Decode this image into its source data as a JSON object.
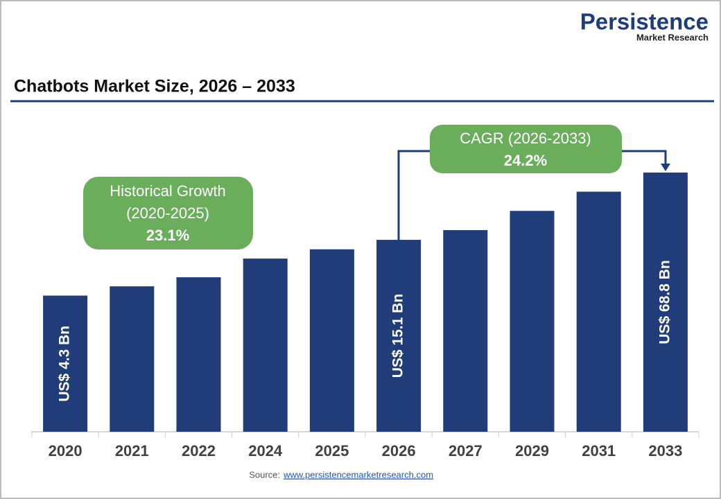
{
  "brand": {
    "name": "Persistence",
    "tagline": "Market Research"
  },
  "source": {
    "label": "Source:",
    "url": "www.persistencemarketresearch.com"
  },
  "chart_data": {
    "type": "bar",
    "title": "Chatbots Market Size, 2026 – 2033",
    "categories": [
      "2020",
      "2021",
      "2022",
      "2024",
      "2025",
      "2026",
      "2027",
      "2029",
      "2031",
      "2033"
    ],
    "values": [
      4.3,
      5.3,
      6.5,
      9.9,
      12.2,
      15.1,
      18.8,
      29.0,
      44.7,
      68.8
    ],
    "value_labels": [
      "US$ 4.3 Bn",
      null,
      null,
      null,
      null,
      "US$ 15.1 Bn",
      null,
      null,
      null,
      "US$ 68.8 Bn"
    ],
    "color": "#203d7a",
    "log_scale": true,
    "ylim": [
      0.2,
      100
    ],
    "annotations": [
      {
        "title": "Historical Growth",
        "period": "(2020-2025)",
        "value": "23.1%"
      },
      {
        "title": "CAGR (2026-2033)",
        "value": "24.2%"
      }
    ]
  }
}
